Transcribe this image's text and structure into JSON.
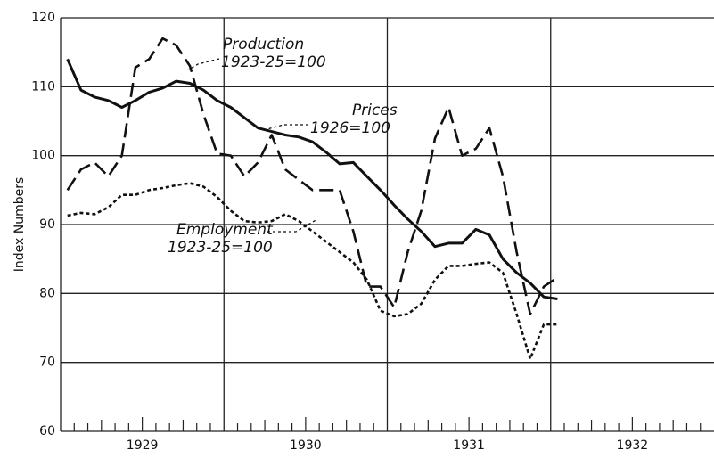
{
  "chart_data": {
    "type": "line",
    "ylabel": "Index Numbers",
    "x": [
      1929.042,
      1929.125,
      1929.208,
      1929.292,
      1929.375,
      1929.458,
      1929.542,
      1929.625,
      1929.708,
      1929.792,
      1929.875,
      1929.958,
      1930.042,
      1930.125,
      1930.208,
      1930.292,
      1930.375,
      1930.458,
      1930.542,
      1930.625,
      1930.708,
      1930.792,
      1930.875,
      1930.958,
      1931.042,
      1931.125,
      1931.208,
      1931.292,
      1931.375,
      1931.458,
      1931.542,
      1931.625,
      1931.708,
      1931.792,
      1931.875,
      1931.958,
      1932.042
    ],
    "series": [
      {
        "name": "Production",
        "note": "1923-25=100",
        "color": "#111111",
        "style": "dashed",
        "values": [
          95,
          98,
          99,
          97,
          100,
          112.8,
          114,
          117,
          116,
          113,
          106,
          100.3,
          100,
          97,
          99,
          103,
          98,
          96.5,
          95,
          95,
          95,
          89,
          81,
          81,
          78,
          86,
          92,
          102.5,
          107,
          100,
          101,
          104,
          97,
          86,
          77,
          81,
          82.3
        ]
      },
      {
        "name": "Prices",
        "note": "1926=100",
        "color": "#111111",
        "style": "solid",
        "values": [
          114,
          109.5,
          108.5,
          108,
          107,
          108,
          109.2,
          109.8,
          110.8,
          110.5,
          109.5,
          108,
          107,
          105.5,
          104,
          103.5,
          103,
          102.7,
          102,
          100.5,
          98.8,
          99,
          97,
          95,
          92.8,
          90.8,
          89,
          86.8,
          87.3,
          87.3,
          89.3,
          88.5,
          85,
          83,
          81.5,
          79.5,
          79.2
        ]
      },
      {
        "name": "Employment",
        "note": "1923-25=100",
        "color": "#111111",
        "style": "dotted",
        "values": [
          91.3,
          91.7,
          91.5,
          92.5,
          94.3,
          94.3,
          95,
          95.3,
          95.7,
          96,
          95.5,
          94,
          92,
          90.5,
          90.3,
          90.5,
          91.5,
          90.5,
          89,
          87.5,
          86,
          84.5,
          82,
          77.5,
          76.7,
          77,
          78.5,
          82,
          84,
          84,
          84.3,
          84.5,
          83,
          77,
          70.5,
          75.5,
          75.5
        ]
      }
    ],
    "xlim": [
      1929,
      1933
    ],
    "xticks": [
      {
        "value": 1929.5,
        "label": "1929"
      },
      {
        "value": 1930.5,
        "label": "1930"
      },
      {
        "value": 1931.5,
        "label": "1931"
      },
      {
        "value": 1932.5,
        "label": "1932"
      }
    ],
    "xgrid": [
      1930,
      1931,
      1932
    ],
    "ylim": [
      60,
      120
    ],
    "yticks": [
      60,
      70,
      80,
      90,
      100,
      110,
      120
    ],
    "grid": true
  }
}
